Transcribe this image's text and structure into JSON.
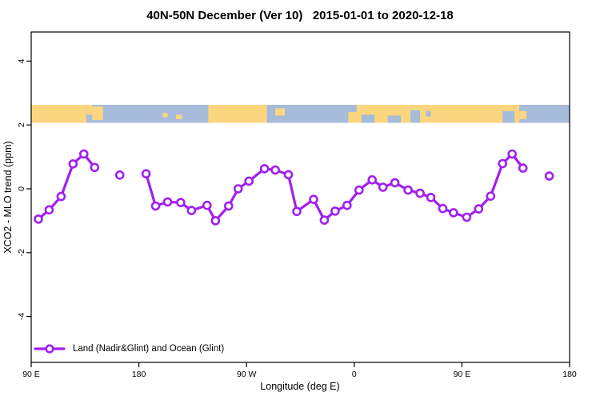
{
  "title": "40N-50N December (Ver 10)   2015-01-01 to 2020-12-18",
  "legend": {
    "label": "Land (Nadir&Glint) and Ocean (Glint)"
  },
  "colors": {
    "series_purple": "#A020F0",
    "land_orange": "#FBD67F",
    "ocean_blue": "#A7BBDA",
    "axis_black": "#000000",
    "background": "#FFFFFF"
  },
  "chart_data": {
    "type": "line",
    "title": "40N-50N December (Ver 10)   2015-01-01 to 2020-12-18",
    "xlabel": "Longitude (deg E)",
    "ylabel": "XCO2 - MLO trend (ppm)",
    "x_axis": {
      "note": "wrapped longitude axis starting at 90E; tick positions given in degrees along axis (0-450)",
      "ticks_axis_deg": [
        0,
        90,
        180,
        270,
        360,
        450
      ],
      "tick_labels": [
        "90 E",
        "180",
        "90 W",
        "0",
        "90 E",
        "180"
      ],
      "range_axis_deg": [
        0,
        450
      ]
    },
    "y_axis": {
      "ticks": [
        -4,
        -2,
        0,
        2,
        4
      ],
      "tick_labels": [
        "-4",
        "-2",
        "0",
        "2",
        "4"
      ],
      "ylim": [
        -5.4,
        4.9
      ],
      "grid": false
    },
    "legend_position": "bottom-left",
    "series": [
      {
        "name": "Land (Nadir&Glint) and Ocean (Glint)",
        "marker": "open-circle",
        "segments": [
          [
            [
              6,
              -0.95
            ],
            [
              15,
              -0.66
            ],
            [
              25,
              -0.24
            ],
            [
              35,
              0.78
            ],
            [
              44,
              1.09
            ],
            [
              53,
              0.67
            ]
          ],
          [
            [
              74,
              0.43
            ]
          ],
          [
            [
              96,
              0.47
            ],
            [
              104,
              -0.54
            ],
            [
              114,
              -0.41
            ],
            [
              125,
              -0.43
            ],
            [
              134,
              -0.68
            ],
            [
              147,
              -0.52
            ],
            [
              154,
              -1.0
            ],
            [
              165,
              -0.54
            ],
            [
              173,
              0.0
            ],
            [
              182,
              0.24
            ],
            [
              195,
              0.63
            ],
            [
              204,
              0.59
            ],
            [
              215,
              0.44
            ],
            [
              222,
              -0.71
            ],
            [
              236,
              -0.33
            ],
            [
              245,
              -0.98
            ],
            [
              254,
              -0.7
            ],
            [
              264,
              -0.52
            ],
            [
              274,
              -0.04
            ],
            [
              285,
              0.28
            ],
            [
              294,
              0.05
            ],
            [
              304,
              0.19
            ],
            [
              315,
              -0.04
            ],
            [
              325,
              -0.14
            ],
            [
              334,
              -0.27
            ],
            [
              344,
              -0.62
            ],
            [
              353,
              -0.75
            ],
            [
              364,
              -0.89
            ],
            [
              374,
              -0.63
            ],
            [
              384,
              -0.23
            ],
            [
              394,
              0.79
            ],
            [
              402,
              1.09
            ],
            [
              411,
              0.65
            ]
          ],
          [
            [
              433,
              0.4
            ]
          ]
        ]
      }
    ],
    "map_band": {
      "description": "world-map strip of the 40N-50N zone drawn across the plot",
      "y_range_ppm": [
        2.07,
        2.63
      ],
      "land_blocks": [
        [
          0,
          46,
          0,
          1
        ],
        [
          46,
          51,
          0,
          0.55
        ],
        [
          51,
          60,
          0.1,
          0.85
        ],
        [
          110,
          114,
          0.45,
          0.7
        ],
        [
          121,
          126,
          0.55,
          0.8
        ],
        [
          148,
          197,
          0,
          1
        ],
        [
          204,
          212,
          0.2,
          0.6
        ],
        [
          265,
          408,
          0,
          1
        ],
        [
          408,
          414,
          0.35,
          0.8
        ]
      ],
      "ocean_patches": [
        [
          263,
          272,
          0,
          0.4
        ],
        [
          276,
          287,
          0.55,
          1
        ],
        [
          298,
          309,
          0.6,
          1
        ],
        [
          317,
          325,
          0.3,
          1
        ],
        [
          330,
          334,
          0.35,
          0.65
        ],
        [
          394,
          404,
          0.35,
          1
        ]
      ]
    }
  }
}
